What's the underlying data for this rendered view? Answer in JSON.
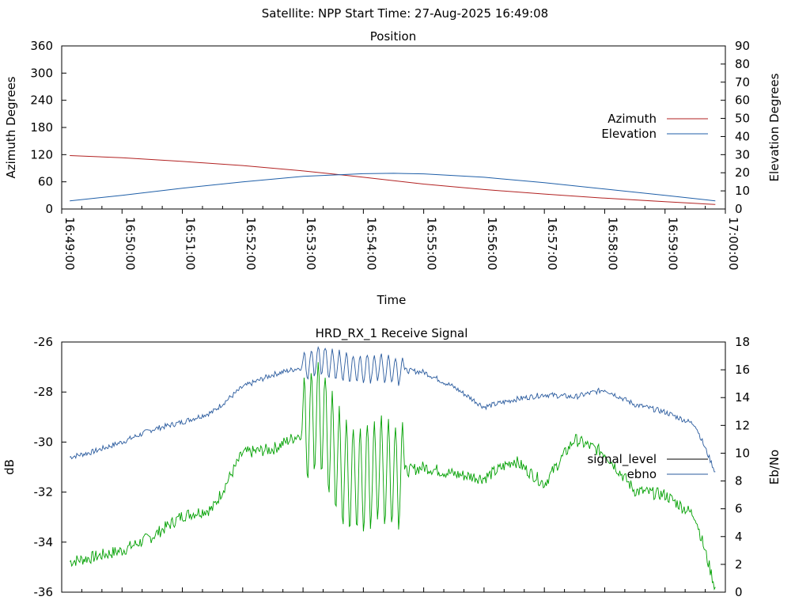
{
  "header": {
    "title": "Satellite: NPP    Start Time: 27-Aug-2025 16:49:08"
  },
  "colors": {
    "azimuth": "#b22222",
    "elevation": "#1f5fa8",
    "ebno_top": "#2a5b9e",
    "signal_green": "#00a000",
    "axis": "#000000",
    "background": "#ffffff"
  },
  "chart_data": [
    {
      "type": "line",
      "title": "Position",
      "xlabel": "Time",
      "ylabel": "Azimuth Degrees",
      "y2label": "Elevation Degrees",
      "x_ticks": [
        "16:49:00",
        "16:50:00",
        "16:51:00",
        "16:52:00",
        "16:53:00",
        "16:54:00",
        "16:55:00",
        "16:56:00",
        "16:57:00",
        "16:58:00",
        "16:59:00",
        "17:00:00"
      ],
      "xlim": [
        "16:49:00",
        "17:00:00"
      ],
      "ylim": [
        0,
        360
      ],
      "y_ticks": [
        0,
        60,
        120,
        180,
        240,
        300,
        360
      ],
      "y2lim": [
        0,
        90
      ],
      "y2_ticks": [
        0,
        10,
        20,
        30,
        40,
        50,
        60,
        70,
        80,
        90
      ],
      "legend_position": "right-middle",
      "series": [
        {
          "name": "Azimuth",
          "axis": "y",
          "color": "#b22222",
          "x": [
            "16:49:08",
            "16:50:00",
            "16:51:00",
            "16:52:00",
            "16:53:00",
            "16:53:40",
            "16:54:00",
            "16:55:00",
            "16:56:00",
            "16:57:00",
            "16:58:00",
            "16:59:00",
            "16:59:50"
          ],
          "y": [
            118,
            113,
            105,
            96,
            84,
            75,
            70,
            55,
            43,
            33,
            24,
            16,
            10
          ]
        },
        {
          "name": "Elevation",
          "axis": "y2",
          "color": "#1f5fa8",
          "x": [
            "16:49:08",
            "16:50:00",
            "16:51:00",
            "16:52:00",
            "16:53:00",
            "16:54:00",
            "16:54:30",
            "16:55:00",
            "16:56:00",
            "16:57:00",
            "16:58:00",
            "16:59:00",
            "16:59:50"
          ],
          "y": [
            4.5,
            7.5,
            11.5,
            15,
            18,
            19.5,
            19.7,
            19.4,
            17.5,
            14.5,
            11,
            7.5,
            4.5
          ]
        }
      ]
    },
    {
      "type": "line",
      "title": "HRD_RX_1 Receive Signal",
      "ylabel": "dB",
      "y2label": "Eb/No",
      "xlim": [
        "16:49:00",
        "17:00:00"
      ],
      "ylim": [
        -36,
        -26
      ],
      "y_ticks": [
        -36,
        -34,
        -32,
        -30,
        -28,
        -26
      ],
      "y2lim": [
        0,
        18
      ],
      "y2_ticks": [
        0,
        2,
        4,
        6,
        8,
        10,
        12,
        14,
        16,
        18
      ],
      "legend_position": "right-middle",
      "legend": [
        {
          "name": "signal_level",
          "color": "#000000"
        },
        {
          "name": "ebno",
          "color": "#2a5b9e"
        }
      ],
      "series": [
        {
          "name": "ebno",
          "axis": "y",
          "color": "#2a5b9e",
          "x": [
            "16:49:08",
            "16:49:30",
            "16:50:00",
            "16:50:30",
            "16:51:00",
            "16:51:30",
            "16:52:00",
            "16:52:30",
            "16:53:00",
            "16:53:15",
            "16:53:40",
            "16:54:00",
            "16:54:15",
            "16:54:30",
            "16:55:00",
            "16:55:30",
            "16:56:00",
            "16:56:30",
            "16:57:00",
            "16:57:30",
            "16:58:00",
            "16:58:30",
            "16:59:00",
            "16:59:30",
            "16:59:50"
          ],
          "y": [
            -30.6,
            -30.4,
            -30.0,
            -29.5,
            -29.2,
            -28.8,
            -27.8,
            -27.3,
            -27.0,
            -26.7,
            -27.0,
            -27.1,
            -27.0,
            -27.1,
            -27.2,
            -27.8,
            -28.6,
            -28.3,
            -28.1,
            -28.2,
            -27.9,
            -28.5,
            -28.8,
            -29.3,
            -31.2
          ]
        },
        {
          "name": "",
          "axis": "y2",
          "color": "#00a000",
          "x": [
            "16:49:08",
            "16:49:30",
            "16:50:00",
            "16:50:30",
            "16:51:00",
            "16:51:30",
            "16:52:00",
            "16:52:30",
            "16:53:00",
            "16:53:15",
            "16:53:40",
            "16:54:00",
            "16:54:15",
            "16:54:30",
            "16:55:00",
            "16:55:30",
            "16:56:00",
            "16:56:30",
            "16:57:00",
            "16:57:30",
            "16:58:00",
            "16:58:30",
            "16:59:00",
            "16:59:30",
            "16:59:50"
          ],
          "y": [
            2.2,
            2.5,
            3.0,
            4.0,
            5.5,
            6.0,
            10.0,
            10.3,
            11.5,
            13.0,
            8.5,
            8.0,
            9.0,
            8.5,
            9.0,
            8.5,
            8.2,
            9.5,
            7.8,
            11.0,
            10.0,
            7.3,
            7.0,
            5.5,
            0.3
          ]
        }
      ]
    }
  ]
}
